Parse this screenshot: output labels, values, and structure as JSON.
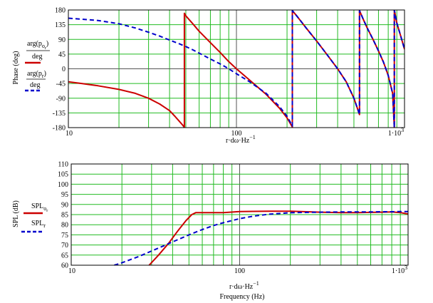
{
  "chart_data": [
    {
      "type": "line",
      "xscale": "log",
      "xlim": [
        10,
        1000
      ],
      "ylim": [
        -180,
        180
      ],
      "y_ticks": [
        180,
        135,
        90,
        45,
        0,
        -45,
        -90,
        -135,
        -180
      ],
      "x_tick_labels": [
        "10",
        "100",
        "1·10"
      ],
      "x_tick_sup": "3",
      "xlabel": "r·dω·Hz",
      "xlabel_sup": "−1",
      "ylabel": "Phase (deg)",
      "grid": true,
      "legend_placement": "left",
      "series": [
        {
          "name": "arg(p",
          "name_sub": "o",
          "name_sub2": "r",
          "name_den": "deg",
          "color": "#cc0000",
          "style": "solid",
          "x": [
            10,
            12,
            15,
            20,
            25,
            30,
            35,
            40,
            43,
            46,
            48,
            49,
            49,
            50,
            55,
            60,
            70,
            80,
            90,
            100,
            120,
            150,
            180,
            200,
            215,
            215,
            230,
            260,
            300,
            350,
            400,
            450,
            500,
            540,
            540,
            570,
            600,
            650,
            700,
            750,
            800,
            850,
            870,
            870,
            900,
            950,
            1000
          ],
          "y": [
            -40,
            -45,
            -52,
            -63,
            -75,
            -90,
            -108,
            -128,
            -145,
            -162,
            -173,
            -180,
            170,
            162,
            138,
            115,
            80,
            50,
            22,
            0,
            -35,
            -78,
            -120,
            -150,
            -178,
            178,
            160,
            125,
            85,
            40,
            0,
            -40,
            -90,
            -140,
            178,
            150,
            125,
            90,
            55,
            20,
            -20,
            -75,
            -180,
            180,
            140,
            100,
            60
          ]
        },
        {
          "name": "arg(p",
          "name_sub": "r",
          "name_den": "deg",
          "color": "#0000cc",
          "style": "dashed",
          "x": [
            10,
            15,
            20,
            25,
            30,
            35,
            40,
            45,
            50,
            55,
            60,
            70,
            80,
            90,
            100,
            120,
            150,
            180,
            200,
            215,
            215,
            230,
            260,
            300,
            350,
            400,
            450,
            500,
            540,
            540,
            570,
            600,
            650,
            700,
            750,
            800,
            850,
            870,
            870,
            900,
            950,
            1000
          ],
          "y": [
            155,
            148,
            138,
            125,
            112,
            100,
            88,
            78,
            68,
            58,
            48,
            30,
            15,
            0,
            -15,
            -40,
            -75,
            -115,
            -145,
            -175,
            178,
            160,
            125,
            85,
            40,
            0,
            -40,
            -90,
            -140,
            178,
            150,
            125,
            90,
            55,
            20,
            -20,
            -75,
            -180,
            180,
            140,
            100,
            60
          ]
        }
      ]
    },
    {
      "type": "line",
      "xscale": "log",
      "xlim": [
        10,
        1000
      ],
      "ylim": [
        60,
        110
      ],
      "y_ticks": [
        110,
        105,
        100,
        95,
        90,
        85,
        80,
        75,
        70,
        65,
        60
      ],
      "x_tick_labels": [
        "10",
        "100",
        "1·10"
      ],
      "x_tick_sup": "3",
      "xlabel": "r·dω·Hz",
      "xlabel_sup": "−1",
      "xlabel2": "Frequency (Hz)",
      "ylabel": "SPL (dB)",
      "grid": true,
      "legend_placement": "left",
      "series": [
        {
          "name": "SPL",
          "name_sub": "o",
          "name_sub2": "r",
          "color": "#cc0000",
          "style": "solid",
          "x": [
            29,
            33,
            38,
            43,
            48,
            52,
            55,
            60,
            70,
            80,
            100,
            120,
            150,
            200,
            250,
            300,
            400,
            500,
            600,
            700,
            800,
            900,
            1000
          ],
          "y": [
            60,
            65,
            71,
            77,
            82,
            85,
            86,
            86,
            86,
            86,
            86.5,
            86.6,
            86.7,
            86.7,
            86.4,
            86.2,
            86,
            86,
            86.1,
            86.2,
            86.3,
            86,
            85.3
          ]
        },
        {
          "name": "SPL",
          "name_sub": "r",
          "color": "#0000cc",
          "style": "dashed",
          "x": [
            18,
            20,
            25,
            30,
            35,
            40,
            50,
            60,
            70,
            80,
            100,
            120,
            150,
            200,
            250,
            300,
            400,
            500,
            600,
            700,
            800,
            900,
            1000
          ],
          "y": [
            60,
            61.2,
            64.2,
            67,
            69.4,
            71.5,
            75,
            77.6,
            79.6,
            81,
            83,
            84.2,
            85.2,
            85.9,
            86.1,
            86.2,
            86.3,
            86.3,
            86.3,
            86.4,
            86.4,
            86.5,
            86.5
          ]
        }
      ]
    }
  ]
}
